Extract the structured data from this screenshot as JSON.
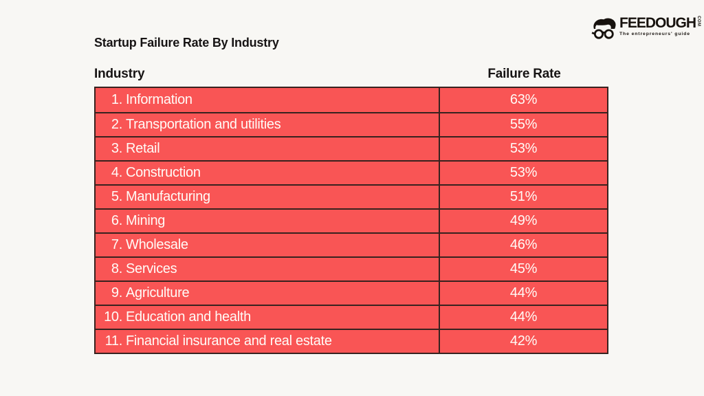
{
  "page": {
    "title": "Startup Failure Rate By Industry",
    "background_color": "#F8F7F4"
  },
  "logo": {
    "brand": "FEEDOUGH",
    "domain": "COM",
    "tagline": "The entrepreneurs' guide",
    "icon": "nerd-face-icon",
    "color": "#17120E"
  },
  "table": {
    "columns": [
      "Industry",
      "Failure Rate"
    ],
    "row_color": "#F95555",
    "border_color": "#37221F",
    "text_color": "#FFFBF7",
    "rows": [
      {
        "rank": "1.",
        "industry": "Information",
        "failure_rate": "63%"
      },
      {
        "rank": "2.",
        "industry": "Transportation and utilities",
        "failure_rate": "55%"
      },
      {
        "rank": "3.",
        "industry": "Retail",
        "failure_rate": "53%"
      },
      {
        "rank": "4.",
        "industry": "Construction",
        "failure_rate": "53%"
      },
      {
        "rank": "5.",
        "industry": "Manufacturing",
        "failure_rate": "51%"
      },
      {
        "rank": "6.",
        "industry": "Mining",
        "failure_rate": "49%"
      },
      {
        "rank": "7.",
        "industry": "Wholesale",
        "failure_rate": "46%"
      },
      {
        "rank": "8.",
        "industry": "Services",
        "failure_rate": "45%"
      },
      {
        "rank": "9.",
        "industry": "Agriculture",
        "failure_rate": "44%"
      },
      {
        "rank": "10.",
        "industry": "Education and health",
        "failure_rate": "44%"
      },
      {
        "rank": "11.",
        "industry": "Financial insurance and real estate",
        "failure_rate": "42%"
      }
    ]
  },
  "chart_data": {
    "type": "table",
    "title": "Startup Failure Rate By Industry",
    "columns": [
      "Industry",
      "Failure Rate"
    ],
    "categories": [
      "Information",
      "Transportation and utilities",
      "Retail",
      "Construction",
      "Manufacturing",
      "Mining",
      "Wholesale",
      "Services",
      "Agriculture",
      "Education and health",
      "Financial insurance and real estate"
    ],
    "values": [
      63,
      55,
      53,
      53,
      51,
      49,
      46,
      45,
      44,
      44,
      42
    ],
    "unit": "%",
    "legend": "none",
    "grid": "table-borders"
  }
}
